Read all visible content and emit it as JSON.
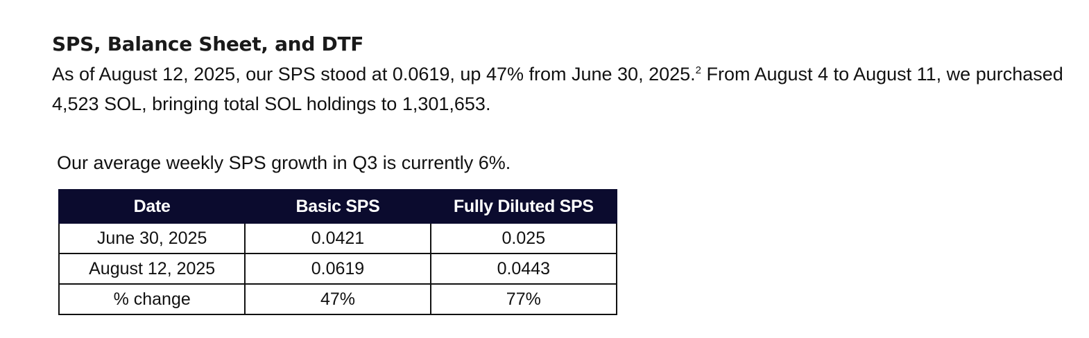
{
  "section": {
    "title": "SPS, Balance Sheet, and DTF",
    "paragraph_part1": "As of August 12, 2025, our SPS stood at 0.0619, up 47% from June 30, 2025.",
    "footnote_marker": "2",
    "paragraph_part2": " From August 4 to August 11, we purchased 4,523 SOL, bringing total SOL holdings to 1,301,653.",
    "growth_note": "Our average weekly SPS growth in Q3 is currently 6%."
  },
  "table": {
    "headers": [
      "Date",
      "Basic SPS",
      "Fully Diluted SPS"
    ],
    "rows": [
      [
        "June 30, 2025",
        "0.0421",
        "0.025"
      ],
      [
        "August 12, 2025",
        "0.0619",
        "0.0443"
      ],
      [
        "% change",
        "47%",
        "77%"
      ]
    ],
    "header_bg": "#0b0b2e",
    "header_text_color": "#ffffff"
  }
}
